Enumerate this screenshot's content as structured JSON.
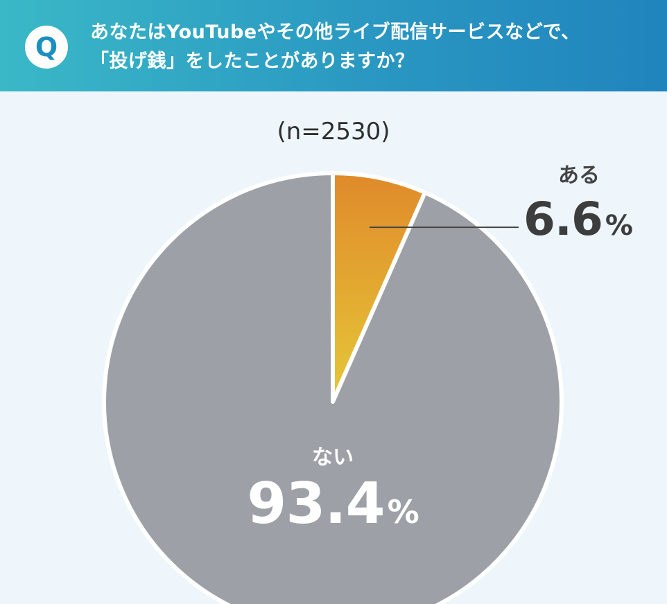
{
  "header": {
    "badge": "Q",
    "question_line1": "あなたはYouTubeやその他ライブ配信サービスなどで、",
    "question_line2": "「投げ銭」をしたことがありますか？"
  },
  "chart_data": {
    "type": "pie",
    "sample_size_label": "(n=2530)",
    "slices": [
      {
        "label": "ある",
        "value": 6.6,
        "display": "6.6",
        "unit": "%",
        "color": "#e08a2a",
        "color_end": "#e5c838"
      },
      {
        "label": "ない",
        "value": 93.4,
        "display": "93.4",
        "unit": "%",
        "color": "#9da1a7"
      }
    ],
    "start_angle_deg": 0,
    "direction": "clockwise"
  },
  "colors": {
    "header_start": "#3ab8c7",
    "header_end": "#2084bd",
    "background": "#eef6fb",
    "leader_line": "#444444"
  }
}
